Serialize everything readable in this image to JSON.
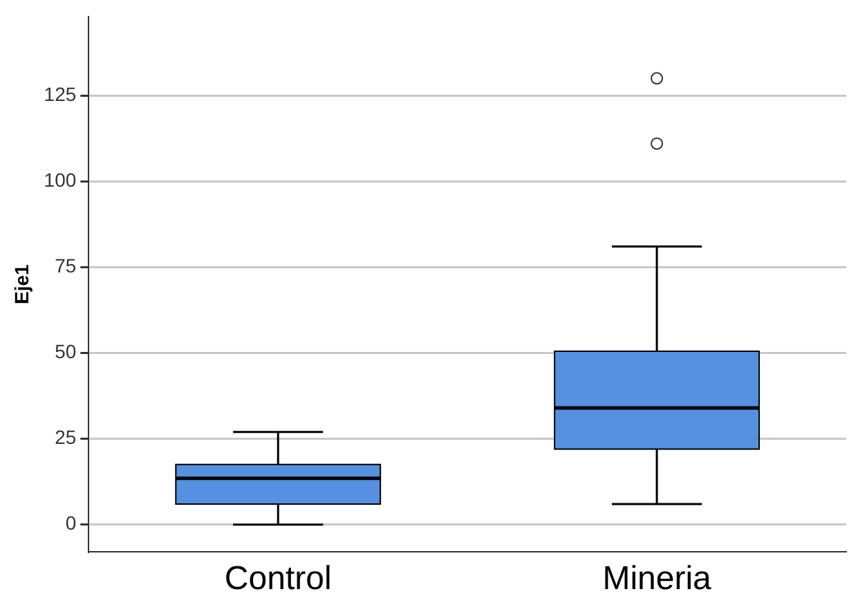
{
  "chart_data": {
    "type": "box",
    "ylabel": "Eje1",
    "categories": [
      "Control",
      "Mineria"
    ],
    "color": "#5591e0",
    "boxes": [
      {
        "low": 0,
        "q1": 6,
        "median": 13.5,
        "q3": 17.5,
        "high": 27
      },
      {
        "low": 6,
        "q1": 22,
        "median": 34,
        "q3": 50.5,
        "high": 81,
        "outliers": [
          111,
          130
        ]
      }
    ],
    "ylim": [
      -8,
      148
    ],
    "yticks": [
      0,
      25,
      50,
      75,
      100,
      125
    ],
    "grid": "y",
    "legend": false
  }
}
